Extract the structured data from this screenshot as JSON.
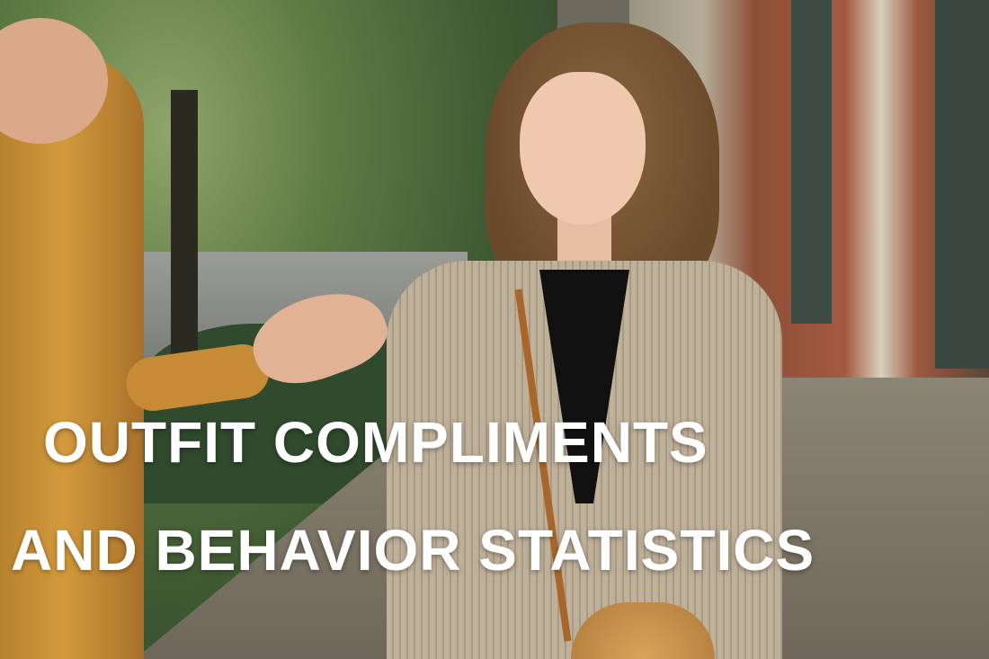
{
  "title": {
    "line1": "OUTFIT COMPLIMENTS",
    "line2": "AND BEHAVIOR STATISTICS"
  }
}
